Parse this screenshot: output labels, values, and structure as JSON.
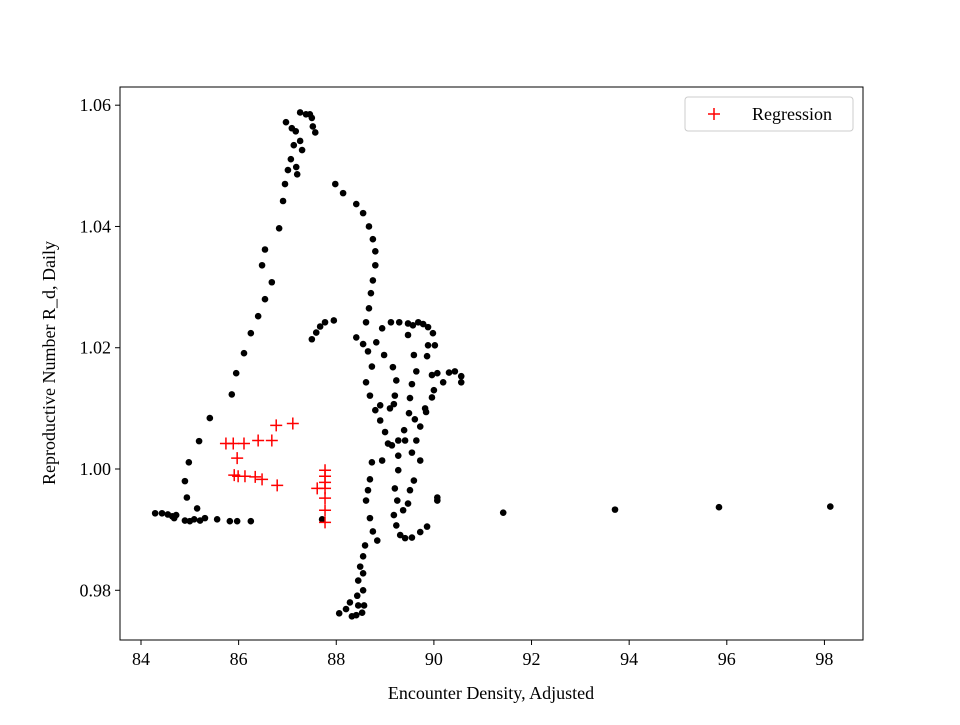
{
  "chart_data": {
    "type": "scatter",
    "xlabel": "Encounter Density, Adjusted",
    "ylabel": "Reproductive Number R_d, Daily",
    "xlim": [
      83.57,
      98.79
    ],
    "ylim": [
      0.9718,
      1.063
    ],
    "xticks": [
      84,
      86,
      88,
      90,
      92,
      94,
      96,
      98
    ],
    "yticks": [
      0.98,
      {
        "value": 1,
        "label": "1.00"
      },
      1.02,
      1.04,
      1.06
    ],
    "legend": "upper right",
    "series": [
      {
        "color": "#000000",
        "marker": "circle",
        "x": [
          84.29,
          84.43,
          84.55,
          84.64,
          84.72,
          84.68,
          84.9,
          85.0,
          85.09,
          85.15,
          84.94,
          84.9,
          84.98,
          85.19,
          85.41,
          85.86,
          85.95,
          86.11,
          86.25,
          86.4,
          86.54,
          86.48,
          86.54,
          86.68,
          86.83,
          86.91,
          86.95,
          87.01,
          87.07,
          87.13,
          87.17,
          86.97,
          87.09,
          87.2,
          87.18,
          87.26,
          87.38,
          87.46,
          87.5,
          87.52,
          87.57,
          87.3,
          87.26,
          85.21,
          85.31,
          85.56,
          85.82,
          85.97,
          86.25,
          87.98,
          88.14,
          88.41,
          88.55,
          88.67,
          88.75,
          88.8,
          88.8,
          88.75,
          88.71,
          88.67,
          88.61,
          87.5,
          87.59,
          87.67,
          87.77,
          87.95,
          88.41,
          88.55,
          88.65,
          88.73,
          88.61,
          88.69,
          88.9,
          89.1,
          89.18,
          89.2,
          89.23,
          89.16,
          88.98,
          88.82,
          88.94,
          89.12,
          89.29,
          89.47,
          89.57,
          89.68,
          89.78,
          89.88,
          89.98,
          90.02,
          89.86,
          89.96,
          90.0,
          89.84,
          89.61,
          89.49,
          89.51,
          89.55,
          89.64,
          89.59,
          89.47,
          89.88,
          90.07,
          90.19,
          90.31,
          90.43,
          90.56,
          90.56,
          90.07,
          90.07,
          88.8,
          88.9,
          89.0,
          89.06,
          89.14,
          89.27,
          89.41,
          89.39,
          89.27,
          89.27,
          88.94,
          88.73,
          88.69,
          88.65,
          88.61,
          88.69,
          88.75,
          88.84,
          88.59,
          88.55,
          88.49,
          88.45,
          88.43,
          88.45,
          88.53,
          88.57,
          88.55,
          88.55,
          88.28,
          88.2,
          88.06,
          88.32,
          88.41,
          89.2,
          89.25,
          89.18,
          89.23,
          89.31,
          89.41,
          89.55,
          89.72,
          89.86,
          89.37,
          89.47,
          89.51,
          89.59,
          89.72,
          89.55,
          89.64,
          89.72,
          89.82,
          89.96,
          91.42,
          93.71,
          95.84,
          98.12,
          87.71
        ],
        "values": [
          0.9927,
          0.9927,
          0.9925,
          0.9922,
          0.9924,
          0.9919,
          0.9915,
          0.9914,
          0.9917,
          0.9935,
          0.9953,
          0.998,
          1.0011,
          1.0046,
          1.0084,
          1.0123,
          1.0158,
          1.0191,
          1.0224,
          1.0252,
          1.028,
          1.0336,
          1.0362,
          1.0308,
          1.0397,
          1.0442,
          1.047,
          1.0493,
          1.0511,
          1.0534,
          1.0557,
          1.0572,
          1.0562,
          1.0486,
          1.0498,
          1.0588,
          1.0585,
          1.0585,
          1.0579,
          1.0565,
          1.0555,
          1.0526,
          1.0541,
          0.9915,
          0.9919,
          0.9917,
          0.9914,
          0.9914,
          0.9914,
          1.047,
          1.0455,
          1.0437,
          1.0422,
          1.04,
          1.0379,
          1.0359,
          1.0336,
          1.0311,
          1.029,
          1.0265,
          1.0242,
          1.0214,
          1.0225,
          1.0235,
          1.0242,
          1.0245,
          1.0217,
          1.0206,
          1.0194,
          1.0169,
          1.0143,
          1.0121,
          1.0105,
          1.01,
          1.0107,
          1.0121,
          1.0146,
          1.0168,
          1.0188,
          1.0209,
          1.0232,
          1.0242,
          1.0242,
          1.024,
          1.0237,
          1.0242,
          1.0239,
          1.0234,
          1.0224,
          1.0204,
          1.0186,
          1.0155,
          1.013,
          1.0094,
          1.0082,
          1.0092,
          1.0117,
          1.014,
          1.0161,
          1.0188,
          1.0221,
          1.0204,
          1.0158,
          1.0143,
          1.0159,
          1.0161,
          1.0153,
          1.0143,
          0.9953,
          0.9948,
          1.0097,
          1.008,
          1.0061,
          1.0042,
          1.0039,
          1.0047,
          1.0047,
          1.0064,
          1.0022,
          0.9998,
          1.0014,
          1.0011,
          0.9983,
          0.9965,
          0.9948,
          0.9919,
          0.9897,
          0.9882,
          0.9874,
          0.9856,
          0.9839,
          0.9816,
          0.9791,
          0.9775,
          0.9763,
          0.9775,
          0.98,
          0.9828,
          0.978,
          0.9769,
          0.9762,
          0.9757,
          0.9759,
          0.9968,
          0.9948,
          0.9924,
          0.9907,
          0.9891,
          0.9886,
          0.9887,
          0.9896,
          0.9905,
          0.9932,
          0.9943,
          0.9965,
          0.9981,
          1.0014,
          1.0027,
          1.0047,
          1.007,
          1.01,
          1.0118,
          0.9928,
          0.9933,
          0.9937,
          0.9938,
          0.9917
        ]
      },
      {
        "name": "Regression",
        "color": "#ff0000",
        "marker": "plus",
        "x": [
          85.74,
          85.89,
          86.11,
          86.4,
          86.68,
          86.77,
          87.11,
          85.97,
          85.91,
          85.99,
          86.13,
          86.34,
          86.48,
          86.79,
          87.61,
          87.77,
          87.77,
          87.77,
          87.77,
          87.77,
          87.77,
          87.77
        ],
        "values": [
          1.0042,
          1.0042,
          1.0042,
          1.0047,
          1.0047,
          1.0072,
          1.0075,
          1.0018,
          0.999,
          0.9988,
          0.9988,
          0.9987,
          0.9983,
          0.9973,
          0.9968,
          0.9998,
          0.9988,
          0.9978,
          0.9968,
          0.9952,
          0.9932,
          0.9912
        ]
      }
    ]
  }
}
